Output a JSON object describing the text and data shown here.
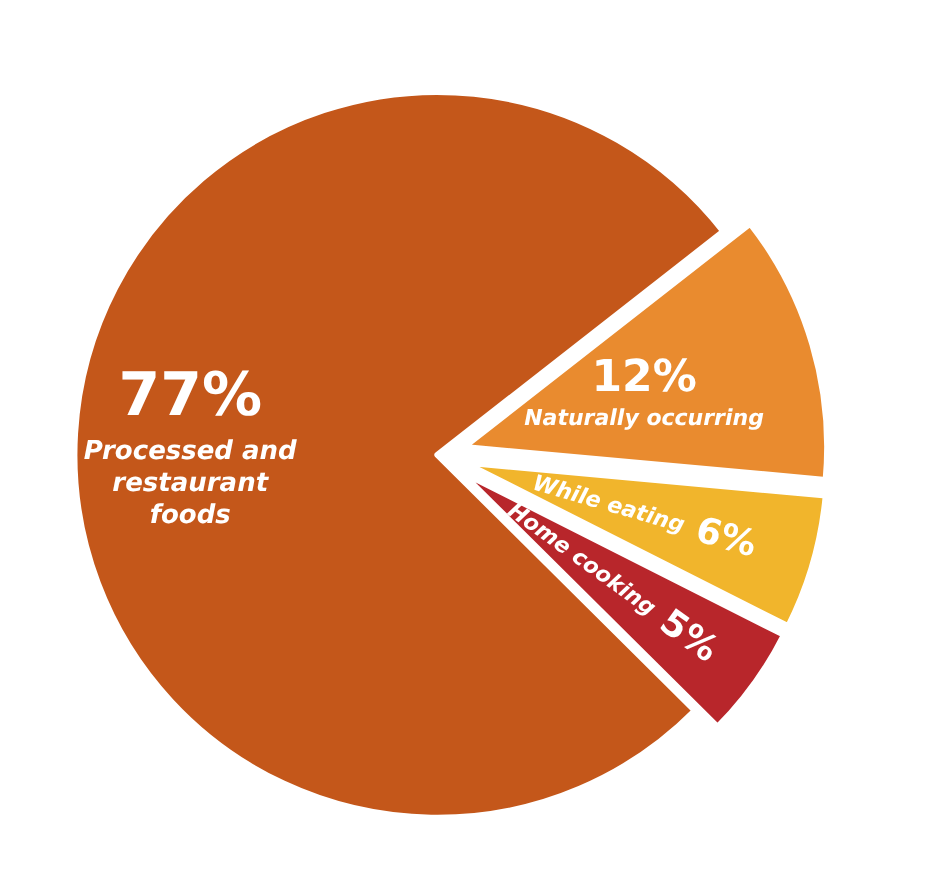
{
  "chart_data": {
    "type": "pie",
    "categories": [
      "Naturally occurring",
      "While eating",
      "Home cooking",
      "Processed and restaurant foods"
    ],
    "values": [
      12,
      6,
      5,
      77
    ],
    "value_labels": [
      "12%",
      "6%",
      "5%",
      "77%"
    ],
    "colors": [
      "#e98b2f",
      "#f1b52c",
      "#b8262b",
      "#c4571a"
    ],
    "data_labels": true,
    "legend": false
  }
}
